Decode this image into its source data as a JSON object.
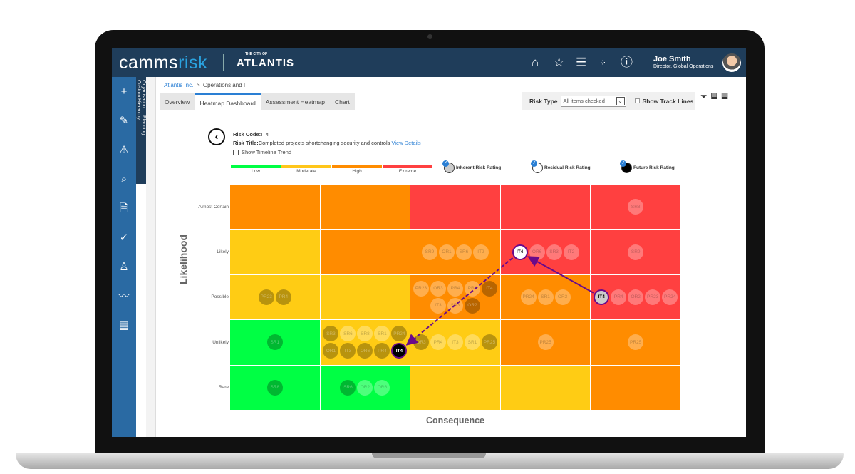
{
  "header": {
    "brand_a": "camms",
    "brand_b": "risk",
    "city_small": "THE CITY OF",
    "city": "ATLANTIS",
    "user_name": "Joe Smith",
    "user_role": "Director, Global Operations",
    "icons": [
      "home-icon",
      "star-icon",
      "menu-icon",
      "apps-grid-icon",
      "help-icon"
    ]
  },
  "sidebar": {
    "icons": [
      "plus-icon",
      "pencil-icon",
      "risk-register-icon",
      "risk-search-icon",
      "incident-icon",
      "compliance-icon",
      "user-search-icon",
      "trend-icon",
      "documents-icon"
    ],
    "vertical_tabs": [
      "Organisation",
      "Planning",
      "Custom Hierarchy"
    ]
  },
  "breadcrumb": {
    "root": "Atlantis Inc.",
    "separator": ">",
    "current": "Operations and IT"
  },
  "tabs": [
    {
      "label": "Overview"
    },
    {
      "label": "Heatmap Dashboard",
      "active": true
    },
    {
      "label": "Assessment Heatmap"
    },
    {
      "label": "Chart"
    }
  ],
  "filters": {
    "risk_type_label": "Risk Type",
    "risk_type_value": "All items checked",
    "track_lines_label": "Show Track Lines",
    "track_lines_checked": false
  },
  "risk": {
    "code_label": "Risk Code:",
    "code": "IT4",
    "title_label": "Risk Title:",
    "title": "Completed projects shortchanging security and controls",
    "view_details": "View Details",
    "timeline_label": "Show Timeline Trend",
    "timeline_checked": false
  },
  "scale": [
    {
      "label": "Low",
      "color": "#00ff44"
    },
    {
      "label": "Moderate",
      "color": "#ffc61a"
    },
    {
      "label": "High",
      "color": "#ff8c00"
    },
    {
      "label": "Extreme",
      "color": "#ff4040"
    }
  ],
  "legend": [
    {
      "label": "Inherent Risk Rating",
      "checked": true,
      "fill": "#cccccc"
    },
    {
      "label": "Residual Risk Rating",
      "checked": true,
      "fill": "#ffffff"
    },
    {
      "label": "Future Risk Rating",
      "checked": true,
      "fill": "#000000"
    }
  ],
  "heatmap": {
    "y_label": "Likelihood",
    "x_label": "Consequence",
    "rows": [
      "Almost Certain",
      "Likely",
      "Possible",
      "Unlikely",
      "Rare"
    ],
    "colors": {
      "G": "#00ff44",
      "Y": "#ffcc14",
      "O": "#ff8c00",
      "R": "#ff4040"
    },
    "cells": [
      [
        {
          "c": "O",
          "b": []
        },
        {
          "c": "O",
          "b": []
        },
        {
          "c": "R",
          "b": []
        },
        {
          "c": "R",
          "b": []
        },
        {
          "c": "R",
          "b": [
            [
              "SR8",
              "light"
            ]
          ]
        }
      ],
      [
        {
          "c": "Y",
          "b": []
        },
        {
          "c": "O",
          "b": []
        },
        {
          "c": "O",
          "b": [
            [
              "SR9",
              "light"
            ],
            [
              "OR1",
              "light"
            ],
            [
              "SR6",
              "light"
            ],
            [
              "IT2",
              "light"
            ]
          ]
        },
        {
          "c": "R",
          "b": [
            [
              "IT4",
              "residual"
            ],
            [
              "OR6",
              "light"
            ],
            [
              "SR3",
              "light"
            ],
            [
              "IT2",
              "light"
            ]
          ]
        },
        {
          "c": "R",
          "b": [
            [
              "SR9",
              "light"
            ]
          ]
        }
      ],
      [
        {
          "c": "Y",
          "b": [
            [
              "PR23",
              "dark"
            ],
            [
              "PR4",
              "dark"
            ]
          ]
        },
        {
          "c": "Y",
          "b": []
        },
        {
          "c": "O",
          "b": [
            [
              "PR23",
              "light"
            ],
            [
              "OR3",
              "light"
            ],
            [
              "PR4",
              "light"
            ],
            [
              "PR4",
              "light"
            ],
            [
              "IT4",
              "dark"
            ],
            [
              "IT3",
              "light"
            ],
            [
              "SR3",
              "light"
            ],
            [
              "OR2",
              "dark"
            ]
          ]
        },
        {
          "c": "O",
          "b": [
            [
              "PR24",
              "light"
            ],
            [
              "SR1",
              "light"
            ],
            [
              "OR3",
              "light"
            ]
          ]
        },
        {
          "c": "R",
          "b": [
            [
              "IT4",
              "inherent"
            ],
            [
              "PR4",
              "light"
            ],
            [
              "OR2",
              "light"
            ],
            [
              "PR23",
              "light"
            ],
            [
              "PR24",
              "light"
            ]
          ]
        }
      ],
      [
        {
          "c": "G",
          "b": [
            [
              "SR1",
              "dark"
            ]
          ]
        },
        {
          "c": "Y",
          "b": [
            [
              "SR3",
              "dark"
            ],
            [
              "SR6",
              "light"
            ],
            [
              "SR8",
              "light"
            ],
            [
              "SR1",
              "light"
            ],
            [
              "PR24",
              "dark"
            ],
            [
              "OR1",
              "dark"
            ],
            [
              "IT3",
              "dark"
            ],
            [
              "OR6",
              "dark"
            ],
            [
              "PR4",
              "dark"
            ],
            [
              "IT4",
              "future"
            ]
          ]
        },
        {
          "c": "Y",
          "b": [
            [
              "OR3",
              "dark"
            ],
            [
              "PR4",
              "light"
            ],
            [
              "IT3",
              "light"
            ],
            [
              "SR1",
              "light"
            ],
            [
              "PR25",
              "dark"
            ]
          ]
        },
        {
          "c": "O",
          "b": [
            [
              "PR25",
              "light"
            ]
          ]
        },
        {
          "c": "O",
          "b": [
            [
              "PR25",
              "light"
            ]
          ]
        }
      ],
      [
        {
          "c": "G",
          "b": [
            [
              "SR8",
              "dark"
            ]
          ]
        },
        {
          "c": "G",
          "b": [
            [
              "SR6",
              "dark"
            ],
            [
              "OR2",
              "light"
            ],
            [
              "OR6",
              "light"
            ]
          ]
        },
        {
          "c": "Y",
          "b": []
        },
        {
          "c": "Y",
          "b": []
        },
        {
          "c": "O",
          "b": []
        }
      ]
    ],
    "track": {
      "from": "inherent",
      "via": "residual",
      "to": "future",
      "color": "#6a0a8a"
    }
  }
}
